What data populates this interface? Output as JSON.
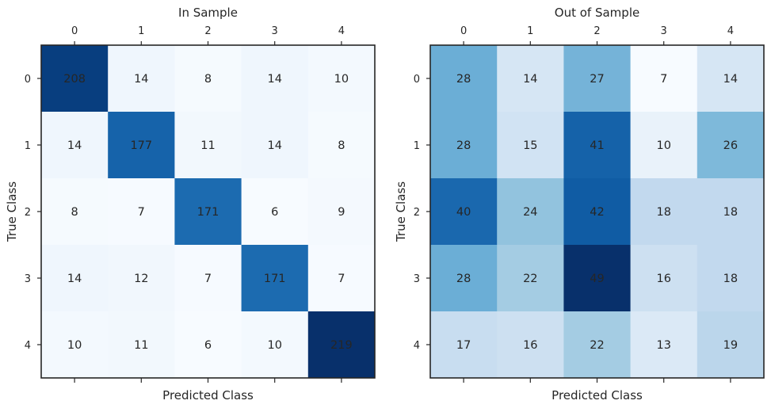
{
  "chart_data": [
    {
      "type": "heatmap",
      "title": "In Sample",
      "xlabel": "Predicted Class",
      "ylabel": "True Class",
      "x_categories": [
        "0",
        "1",
        "2",
        "3",
        "4"
      ],
      "y_categories": [
        "0",
        "1",
        "2",
        "3",
        "4"
      ],
      "values": [
        [
          208,
          14,
          8,
          14,
          10
        ],
        [
          14,
          177,
          11,
          14,
          8
        ],
        [
          8,
          7,
          171,
          6,
          9
        ],
        [
          14,
          12,
          7,
          171,
          7
        ],
        [
          10,
          11,
          6,
          10,
          219
        ]
      ],
      "colormap": "Blues",
      "x_tick_position": "top",
      "grid": false
    },
    {
      "type": "heatmap",
      "title": "Out of Sample",
      "xlabel": "Predicted Class",
      "ylabel": "True Class",
      "x_categories": [
        "0",
        "1",
        "2",
        "3",
        "4"
      ],
      "y_categories": [
        "0",
        "1",
        "2",
        "3",
        "4"
      ],
      "values": [
        [
          28,
          14,
          27,
          7,
          14
        ],
        [
          28,
          15,
          41,
          10,
          26
        ],
        [
          40,
          24,
          42,
          18,
          18
        ],
        [
          28,
          22,
          49,
          16,
          18
        ],
        [
          17,
          16,
          22,
          13,
          19
        ]
      ],
      "colormap": "Blues",
      "x_tick_position": "top",
      "grid": false
    }
  ],
  "colors": {
    "cmap_light": "#f7fbff",
    "cmap_dark": "#08306b",
    "text": "#262626",
    "frame": "#262626"
  }
}
